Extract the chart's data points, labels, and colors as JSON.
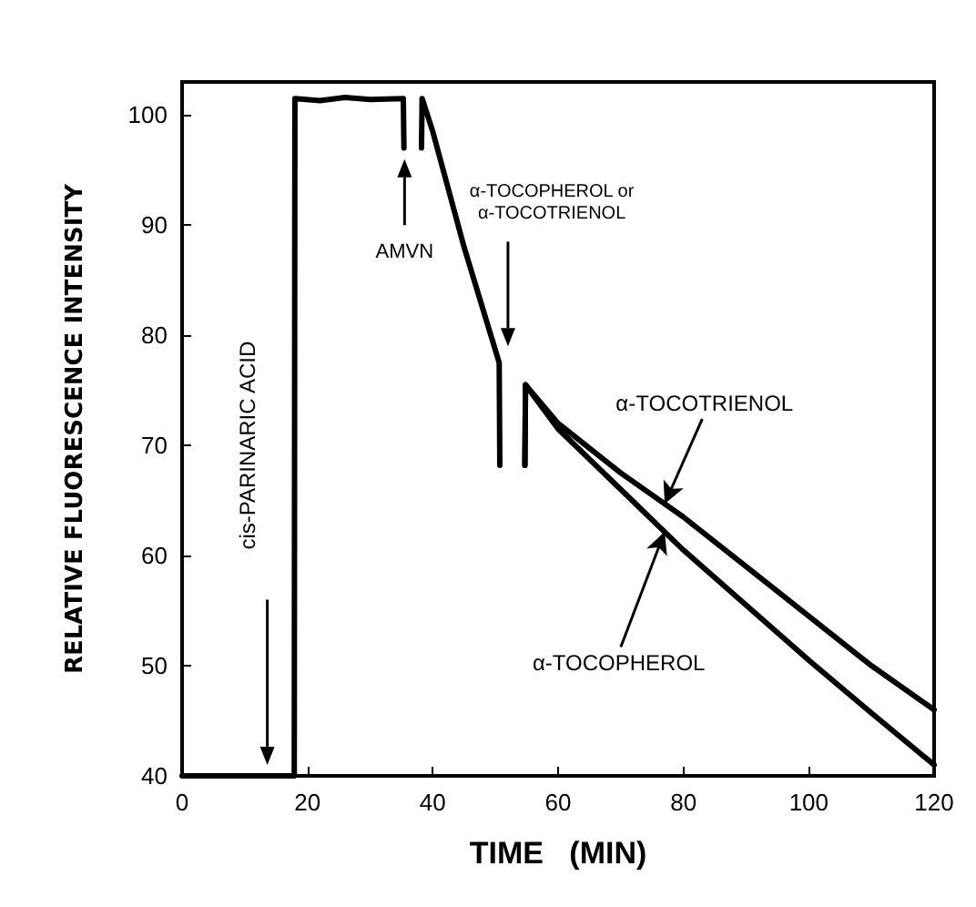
{
  "chart_data": {
    "type": "line",
    "xlabel": "TIME   (MIN)",
    "ylabel": "RELATIVE FLUORESCENCE INTENSITY",
    "xlim": [
      0,
      120
    ],
    "ylim": [
      40,
      103
    ],
    "xticks": [
      0,
      20,
      40,
      60,
      80,
      100,
      120
    ],
    "yticks": [
      40,
      50,
      60,
      70,
      80,
      90,
      100
    ],
    "grid": false,
    "marker": "none",
    "line_style": "solid",
    "series": [
      {
        "color": "#000000",
        "x": [
          0,
          17.9,
          18,
          22,
          26,
          30,
          35.3,
          35.4,
          36.8,
          38.2,
          38.3,
          40,
          45,
          50.6,
          50.7
        ],
        "values": [
          40,
          40,
          101.5,
          101.3,
          101.6,
          101.4,
          101.5,
          97,
          null,
          97,
          101.5,
          98.5,
          88,
          77.5,
          68.2
        ]
      },
      {
        "name": "α-TOCOTRIENOL",
        "color": "#000000",
        "x": [
          54.7,
          54.8,
          60,
          70,
          80,
          90,
          100,
          110,
          120
        ],
        "values": [
          68.2,
          75.5,
          72,
          67.5,
          63.5,
          59,
          54.5,
          50,
          46
        ]
      },
      {
        "name": "α-TOCOPHEROL",
        "color": "#000000",
        "x": [
          54.7,
          54.8,
          60,
          70,
          80,
          90,
          100,
          110,
          120
        ],
        "values": [
          68.2,
          75.5,
          71.5,
          66,
          60.5,
          55.5,
          50.5,
          45.7,
          41
        ]
      }
    ],
    "annotations": [
      "cis-PARINARIC ACID",
      "AMVN",
      "α-TOCOPHEROL or\nα-TOCOTRIENOL"
    ]
  }
}
